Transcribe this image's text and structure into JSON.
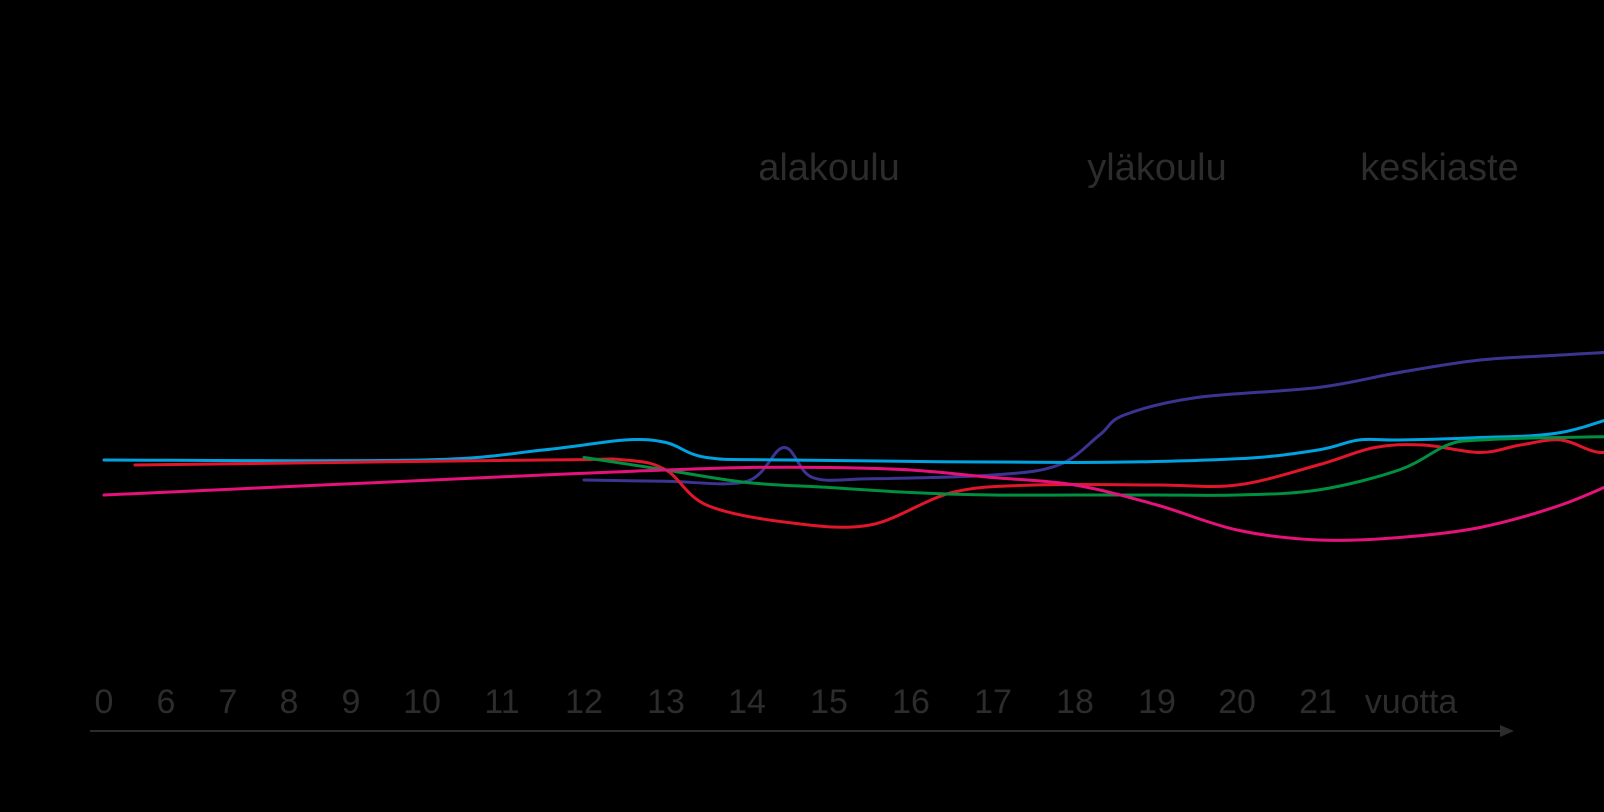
{
  "chart_data": {
    "type": "line",
    "title": "",
    "xlabel": "",
    "ylabel": "",
    "x_unit": "vuotta",
    "ticks": [
      "0",
      "6",
      "7",
      "8",
      "9",
      "10",
      "11",
      "12",
      "13",
      "14",
      "15",
      "16",
      "17",
      "18",
      "19",
      "20",
      "21"
    ],
    "stage_labels": [
      {
        "text": "alakoulu",
        "at": 10
      },
      {
        "text": "yläkoulu",
        "at": 14
      },
      {
        "text": "keskiaste",
        "at": 17.5
      }
    ],
    "ylim": [
      0,
      100
    ],
    "grid": false,
    "legend": "none",
    "series": [
      {
        "color": "#3b3591",
        "points": [
          [
            7,
            40
          ],
          [
            8,
            39.5
          ],
          [
            9,
            39.5
          ],
          [
            9.45,
            53
          ],
          [
            9.8,
            41
          ],
          [
            10.5,
            40.5
          ],
          [
            12,
            42
          ],
          [
            12.8,
            46
          ],
          [
            13.3,
            58
          ],
          [
            13.6,
            66
          ],
          [
            14.5,
            73
          ],
          [
            16,
            77
          ],
          [
            17,
            83
          ],
          [
            18,
            88
          ],
          [
            19,
            90
          ],
          [
            20,
            92
          ],
          [
            20.5,
            94
          ],
          [
            21,
            100
          ]
        ]
      },
      {
        "color": "#00a3e0",
        "points": [
          [
            0,
            48
          ],
          [
            5,
            48
          ],
          [
            6.5,
            52
          ],
          [
            7.5,
            56
          ],
          [
            8,
            55
          ],
          [
            8.5,
            49
          ],
          [
            9.5,
            48
          ],
          [
            13,
            47
          ],
          [
            15,
            48.5
          ],
          [
            16,
            52
          ],
          [
            16.5,
            56
          ],
          [
            17,
            56
          ],
          [
            18,
            57
          ],
          [
            19,
            59
          ],
          [
            20,
            68
          ],
          [
            21,
            71
          ],
          [
            21.5,
            70.5
          ],
          [
            22,
            70
          ]
        ]
      },
      {
        "color": "#e0162b",
        "points": [
          [
            0.5,
            46
          ],
          [
            6.5,
            48
          ],
          [
            7.5,
            48
          ],
          [
            8,
            44
          ],
          [
            8.5,
            30
          ],
          [
            9.5,
            23
          ],
          [
            10.5,
            22
          ],
          [
            11.5,
            35
          ],
          [
            12.5,
            38
          ],
          [
            14,
            38
          ],
          [
            15,
            38
          ],
          [
            16,
            46
          ],
          [
            16.7,
            53
          ],
          [
            17.3,
            54
          ],
          [
            18,
            51
          ],
          [
            18.5,
            54
          ],
          [
            19,
            56
          ],
          [
            19.5,
            51
          ],
          [
            20,
            55
          ],
          [
            21,
            67
          ],
          [
            21.5,
            77
          ],
          [
            22.5,
            77.5
          ],
          [
            23.5,
            76
          ]
        ]
      },
      {
        "color": "#009040",
        "points": [
          [
            7,
            49
          ],
          [
            8,
            44
          ],
          [
            9,
            39
          ],
          [
            10,
            37
          ],
          [
            11,
            35
          ],
          [
            12,
            34
          ],
          [
            13,
            34
          ],
          [
            14,
            34
          ],
          [
            15,
            34
          ],
          [
            16,
            36
          ],
          [
            17,
            44
          ],
          [
            17.6,
            54
          ],
          [
            18,
            56
          ],
          [
            19,
            57
          ],
          [
            20,
            57
          ],
          [
            20.5,
            53
          ],
          [
            21,
            53
          ],
          [
            22,
            54
          ]
        ]
      },
      {
        "color": "#e5127b",
        "points": [
          [
            0,
            34
          ],
          [
            6.5,
            42
          ],
          [
            8,
            44
          ],
          [
            9,
            45
          ],
          [
            10,
            45
          ],
          [
            11,
            44
          ],
          [
            12,
            41
          ],
          [
            13,
            38
          ],
          [
            14,
            30
          ],
          [
            15,
            20
          ],
          [
            16,
            16
          ],
          [
            17,
            17
          ],
          [
            18,
            21
          ],
          [
            19,
            30
          ],
          [
            20,
            43
          ],
          [
            21,
            51
          ],
          [
            22,
            54
          ]
        ]
      }
    ]
  }
}
